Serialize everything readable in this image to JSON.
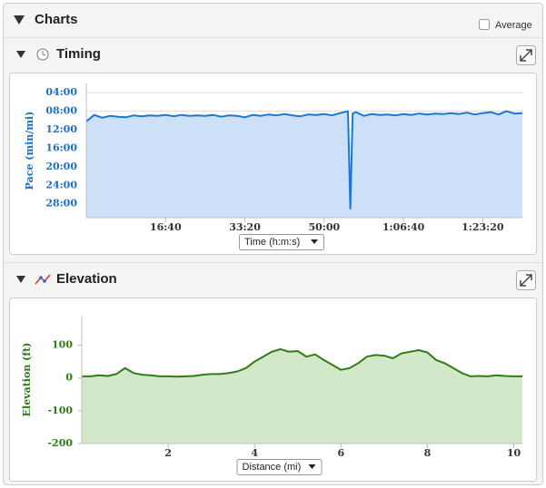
{
  "header": {
    "title": "Charts",
    "average_label": "Average"
  },
  "chart_data": [
    {
      "type": "area",
      "title": "Timing",
      "y_label": "Pace (min/mi)",
      "x_label": "Time (h:m:s)",
      "color": "#1a78d2",
      "fill": "#cce1f7",
      "label_color": "#1f6fbf",
      "grid": true,
      "x": [
        0,
        100,
        200,
        300,
        400,
        500,
        600,
        700,
        800,
        900,
        1000,
        1100,
        1200,
        1300,
        1400,
        1500,
        1600,
        1700,
        1800,
        1900,
        2000,
        2100,
        2200,
        2300,
        2400,
        2500,
        2600,
        2700,
        2800,
        2900,
        3000,
        3100,
        3200,
        3300,
        3330,
        3360,
        3400,
        3500,
        3600,
        3700,
        3800,
        3900,
        4000,
        4100,
        4200,
        4300,
        4400,
        4500,
        4600,
        4700,
        4800,
        4900,
        5000,
        5100,
        5200,
        5300,
        5400,
        5500
      ],
      "values": [
        10.2,
        8.8,
        9.4,
        9.0,
        9.2,
        9.3,
        8.9,
        9.1,
        8.9,
        9.0,
        8.8,
        9.1,
        8.8,
        9.0,
        8.9,
        9.0,
        8.8,
        9.2,
        8.9,
        9.0,
        9.3,
        8.8,
        9.0,
        8.7,
        8.9,
        8.6,
        8.9,
        9.1,
        8.7,
        8.8,
        8.6,
        8.9,
        8.4,
        8.0,
        29.0,
        8.5,
        8.2,
        9.0,
        8.6,
        8.8,
        8.7,
        8.9,
        8.6,
        8.8,
        8.5,
        8.7,
        8.5,
        8.6,
        8.4,
        8.6,
        8.3,
        8.7,
        8.4,
        8.2,
        8.7,
        8.0,
        8.5,
        8.4
      ],
      "xlim": [
        0,
        5500
      ],
      "xticks": [
        {
          "value": 1000,
          "label": "16:40"
        },
        {
          "value": 2000,
          "label": "33:20"
        },
        {
          "value": 3000,
          "label": "50:00"
        },
        {
          "value": 4000,
          "label": "1:06:40"
        },
        {
          "value": 5000,
          "label": "1:23:20"
        }
      ],
      "ylim": [
        31,
        2
      ],
      "yticks": [
        {
          "value": 4,
          "label": "04:00"
        },
        {
          "value": 8,
          "label": "08:00"
        },
        {
          "value": 12,
          "label": "12:00"
        },
        {
          "value": 16,
          "label": "16:00"
        },
        {
          "value": 20,
          "label": "20:00"
        },
        {
          "value": 24,
          "label": "24:00"
        },
        {
          "value": 28,
          "label": "28:00"
        }
      ]
    },
    {
      "type": "area",
      "title": "Elevation",
      "y_label": "Elevation (ft)",
      "x_label": "Distance (mi)",
      "color": "#2f7d14",
      "fill": "#d3e8c9",
      "label_color": "#2d7a17",
      "grid": false,
      "x": [
        0,
        0.2,
        0.4,
        0.6,
        0.8,
        1.0,
        1.2,
        1.4,
        1.6,
        1.8,
        2.0,
        2.2,
        2.4,
        2.6,
        2.8,
        3.0,
        3.2,
        3.4,
        3.6,
        3.8,
        4.0,
        4.2,
        4.4,
        4.6,
        4.8,
        5.0,
        5.2,
        5.4,
        5.6,
        5.8,
        6.0,
        6.2,
        6.4,
        6.6,
        6.8,
        7.0,
        7.2,
        7.4,
        7.6,
        7.8,
        8.0,
        8.2,
        8.4,
        8.6,
        8.8,
        9.0,
        9.2,
        9.4,
        9.6,
        9.8,
        10.0,
        10.2
      ],
      "values": [
        5,
        5,
        8,
        6,
        12,
        30,
        15,
        10,
        8,
        5,
        5,
        4,
        5,
        6,
        10,
        12,
        12,
        15,
        20,
        30,
        50,
        65,
        80,
        88,
        80,
        82,
        65,
        72,
        55,
        40,
        25,
        30,
        45,
        65,
        70,
        68,
        60,
        75,
        80,
        85,
        78,
        55,
        45,
        30,
        15,
        5,
        6,
        5,
        8,
        6,
        5,
        5
      ],
      "xlim": [
        0,
        10.2
      ],
      "xticks": [
        2,
        4,
        6,
        8,
        10
      ],
      "ylim": [
        -200,
        190
      ],
      "yticks": [
        100,
        0,
        -100,
        -200
      ]
    }
  ]
}
